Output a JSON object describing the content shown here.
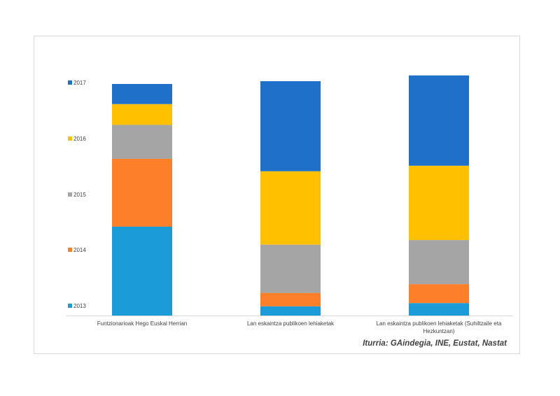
{
  "chart_data": {
    "type": "bar",
    "stacked": true,
    "title": "",
    "xlabel": "",
    "ylabel": "",
    "ylim": [
      0,
      100
    ],
    "legend_position": "left",
    "categories": [
      [
        "Funtzionarioak Hego Euskal Herrian"
      ],
      [
        "Lan eskaintza publikoen lehiaketak"
      ],
      [
        "Lan eskaintza publikoen lehiaketak (Suhiltzaile eta",
        "Hezkuntzan)"
      ]
    ],
    "series": [
      {
        "name": "2013",
        "color": "#1B9CD8",
        "values": [
          38.5,
          4.0,
          5.4
        ]
      },
      {
        "name": "2014",
        "color": "#FE7F2A",
        "values": [
          29.4,
          5.8,
          8.2
        ]
      },
      {
        "name": "2015",
        "color": "#A5A5A5",
        "values": [
          14.7,
          20.9,
          19.1
        ]
      },
      {
        "name": "2016",
        "color": "#FFC000",
        "values": [
          9.0,
          31.8,
          32.2
        ]
      },
      {
        "name": "2017",
        "color": "#1F70C8",
        "values": [
          8.7,
          39.0,
          39.1
        ]
      }
    ],
    "legend_order": [
      "2017",
      "2016",
      "2015",
      "2014",
      "2013"
    ]
  },
  "source": "Iturria: GAindegia, INE, Eustat, Nastat"
}
